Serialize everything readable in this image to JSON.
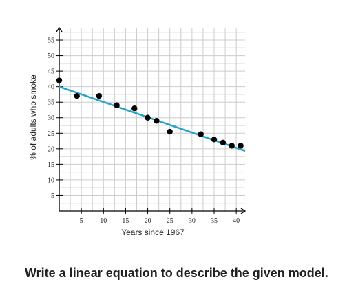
{
  "chart_data": {
    "type": "scatter",
    "xlabel": "Years since 1967",
    "ylabel": "% of adults who smoke",
    "xlim": [
      0,
      42
    ],
    "ylim": [
      0,
      59
    ],
    "x_ticks": [
      5,
      10,
      15,
      20,
      25,
      30,
      35,
      40
    ],
    "y_ticks": [
      5,
      10,
      15,
      20,
      25,
      30,
      35,
      40,
      45,
      50,
      55
    ],
    "grid": true,
    "points": [
      {
        "x": 0,
        "y": 42
      },
      {
        "x": 4,
        "y": 37
      },
      {
        "x": 9,
        "y": 37
      },
      {
        "x": 13,
        "y": 34
      },
      {
        "x": 17,
        "y": 33
      },
      {
        "x": 20,
        "y": 30
      },
      {
        "x": 22,
        "y": 29
      },
      {
        "x": 25,
        "y": 25.5
      },
      {
        "x": 32,
        "y": 24.7
      },
      {
        "x": 35,
        "y": 23
      },
      {
        "x": 37,
        "y": 22
      },
      {
        "x": 39,
        "y": 21
      },
      {
        "x": 41,
        "y": 21
      }
    ],
    "trend_line": {
      "x1": 0,
      "y1": 40,
      "x2": 42,
      "y2": 19.3
    },
    "colors": {
      "trend": "#1fa3c8",
      "points": "#000000",
      "grid": "#cccccc",
      "axis": "#000000"
    }
  },
  "question": "Write a linear equation to describe the given model."
}
